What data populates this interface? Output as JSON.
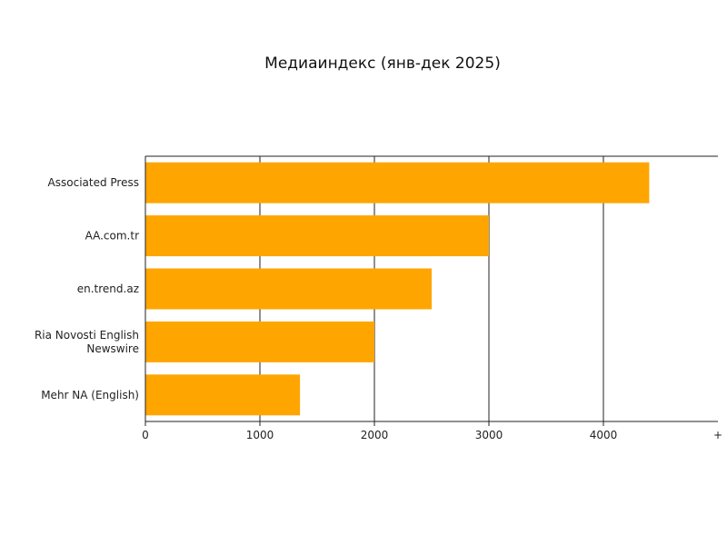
{
  "chart_data": {
    "type": "bar",
    "orientation": "horizontal",
    "title": "Медиаиндекс (янв-дек 2025)",
    "xlabel": "",
    "ylabel": "",
    "categories": [
      "Associated Press",
      "AA.com.tr",
      "en.trend.az",
      "Ria Novosti English Newswire",
      "Mehr NA (English)"
    ],
    "category_lines": [
      [
        "Associated Press"
      ],
      [
        "AA.com.tr"
      ],
      [
        "en.trend.az"
      ],
      [
        "Ria Novosti English",
        "Newswire"
      ],
      [
        "Mehr NA (English)"
      ]
    ],
    "values": [
      4400,
      3000,
      2500,
      2000,
      1350
    ],
    "xlim": [
      0,
      5000
    ],
    "x_ticks": [
      0,
      1000,
      2000,
      3000,
      4000
    ],
    "x_tick_labels": [
      "0",
      "1000",
      "2000",
      "3000",
      "4000"
    ],
    "edge_marker": "+",
    "grid": "vertical",
    "legend": "none",
    "bar_color": "#FFA500"
  }
}
